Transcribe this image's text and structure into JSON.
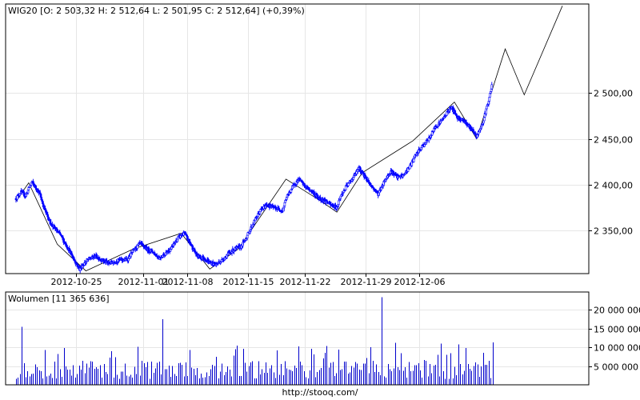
{
  "colors": {
    "candle": "#0000ff",
    "volume": "#0000cc",
    "projection": "#000000",
    "grid": "#e6e6e6"
  },
  "source_url": "http://stooq.com/",
  "chart_data": [
    {
      "type": "candlestick",
      "instrument": "WIG20",
      "header": "WIG20 [O: 2 503,32  H: 2 512,64  L: 2 501,95  C: 2 512,64] (+0,39%)",
      "ohlc": {
        "O": "2 503,32",
        "H": "2 512,64",
        "L": "2 501,95",
        "C": "2 512,64",
        "change": "+0,39%"
      },
      "x_tick_labels": [
        "2012-10-25",
        "2012-11-01",
        "2012-11-08",
        "2012-11-15",
        "2012-11-22",
        "2012-11-29",
        "2012-12-06"
      ],
      "y_tick_labels": [
        "2 350,00",
        "2 400,00",
        "2 450,00",
        "2 500,00"
      ],
      "y_ticks": [
        2350,
        2400,
        2450,
        2500
      ],
      "ylim": [
        2303,
        2597
      ],
      "grid": true,
      "price_path": [
        {
          "x": 0,
          "y": 2385
        },
        {
          "x": 1.5,
          "y": 2392
        },
        {
          "x": 3,
          "y": 2388
        },
        {
          "x": 5,
          "y": 2403
        },
        {
          "x": 7.5,
          "y": 2390
        },
        {
          "x": 9,
          "y": 2373
        },
        {
          "x": 11,
          "y": 2357
        },
        {
          "x": 14,
          "y": 2345
        },
        {
          "x": 16,
          "y": 2333
        },
        {
          "x": 18,
          "y": 2320
        },
        {
          "x": 20,
          "y": 2308
        },
        {
          "x": 22.5,
          "y": 2318
        },
        {
          "x": 25,
          "y": 2322
        },
        {
          "x": 27,
          "y": 2318
        },
        {
          "x": 29,
          "y": 2314
        },
        {
          "x": 31,
          "y": 2316
        },
        {
          "x": 33,
          "y": 2318
        },
        {
          "x": 35,
          "y": 2318
        },
        {
          "x": 37,
          "y": 2328
        },
        {
          "x": 39,
          "y": 2336
        },
        {
          "x": 41,
          "y": 2330
        },
        {
          "x": 43,
          "y": 2327
        },
        {
          "x": 45,
          "y": 2320
        },
        {
          "x": 47,
          "y": 2325
        },
        {
          "x": 49,
          "y": 2331
        },
        {
          "x": 51,
          "y": 2342
        },
        {
          "x": 53,
          "y": 2347
        },
        {
          "x": 55,
          "y": 2335
        },
        {
          "x": 57,
          "y": 2322
        },
        {
          "x": 59,
          "y": 2320
        },
        {
          "x": 61,
          "y": 2315
        },
        {
          "x": 63,
          "y": 2313
        },
        {
          "x": 65,
          "y": 2318
        },
        {
          "x": 67,
          "y": 2325
        },
        {
          "x": 69,
          "y": 2330
        },
        {
          "x": 71,
          "y": 2333
        },
        {
          "x": 73,
          "y": 2346
        },
        {
          "x": 75,
          "y": 2360
        },
        {
          "x": 77,
          "y": 2372
        },
        {
          "x": 79,
          "y": 2378
        },
        {
          "x": 81,
          "y": 2375
        },
        {
          "x": 83,
          "y": 2373
        },
        {
          "x": 84,
          "y": 2372
        },
        {
          "x": 85,
          "y": 2385
        },
        {
          "x": 87,
          "y": 2397
        },
        {
          "x": 89,
          "y": 2406
        },
        {
          "x": 91,
          "y": 2398
        },
        {
          "x": 93,
          "y": 2393
        },
        {
          "x": 95,
          "y": 2386
        },
        {
          "x": 97,
          "y": 2383
        },
        {
          "x": 99,
          "y": 2378
        },
        {
          "x": 101,
          "y": 2375
        },
        {
          "x": 102,
          "y": 2386
        },
        {
          "x": 104,
          "y": 2398
        },
        {
          "x": 106,
          "y": 2407
        },
        {
          "x": 108,
          "y": 2418
        },
        {
          "x": 110,
          "y": 2408
        },
        {
          "x": 112,
          "y": 2398
        },
        {
          "x": 114,
          "y": 2390
        },
        {
          "x": 116,
          "y": 2404
        },
        {
          "x": 118,
          "y": 2415
        },
        {
          "x": 120,
          "y": 2408
        },
        {
          "x": 122,
          "y": 2410
        },
        {
          "x": 124,
          "y": 2420
        },
        {
          "x": 126,
          "y": 2433
        },
        {
          "x": 128,
          "y": 2442
        },
        {
          "x": 130,
          "y": 2450
        },
        {
          "x": 132,
          "y": 2463
        },
        {
          "x": 134,
          "y": 2470
        },
        {
          "x": 136,
          "y": 2480
        },
        {
          "x": 137,
          "y": 2485
        },
        {
          "x": 139,
          "y": 2473
        },
        {
          "x": 141,
          "y": 2470
        },
        {
          "x": 143,
          "y": 2462
        },
        {
          "x": 145,
          "y": 2452
        },
        {
          "x": 147,
          "y": 2468
        },
        {
          "x": 149,
          "y": 2495
        },
        {
          "x": 150,
          "y": 2512
        }
      ],
      "projection_path": [
        {
          "x": 0,
          "y": 2382
        },
        {
          "x": 4,
          "y": 2402
        },
        {
          "x": 13,
          "y": 2335
        },
        {
          "x": 22,
          "y": 2306
        },
        {
          "x": 37,
          "y": 2330
        },
        {
          "x": 52,
          "y": 2347
        },
        {
          "x": 61,
          "y": 2308
        },
        {
          "x": 70,
          "y": 2330
        },
        {
          "x": 85,
          "y": 2406
        },
        {
          "x": 96,
          "y": 2382
        },
        {
          "x": 101,
          "y": 2370
        },
        {
          "x": 109,
          "y": 2413
        },
        {
          "x": 125,
          "y": 2448
        },
        {
          "x": 138,
          "y": 2490
        },
        {
          "x": 145,
          "y": 2450
        },
        {
          "x": 154,
          "y": 2548
        },
        {
          "x": 160,
          "y": 2498
        },
        {
          "x": 172,
          "y": 2595
        }
      ],
      "x_tick_positions": [
        19,
        40,
        54,
        73,
        91,
        110,
        127
      ],
      "x_max": 172,
      "last_candle_x": 150
    },
    {
      "type": "bar",
      "label": "Wolumen [11 365 636]",
      "y_tick_labels": [
        "5 000 000",
        "10 000 000",
        "15 000 000",
        "20 000 000"
      ],
      "y_ticks": [
        5000000,
        10000000,
        15000000,
        20000000
      ],
      "ylim": [
        0,
        24800000
      ],
      "grid": true,
      "spikes": [
        {
          "x": 2,
          "value": 15500000
        },
        {
          "x": 46,
          "value": 17500000
        },
        {
          "x": 82,
          "value": 9200000
        },
        {
          "x": 115,
          "value": 23400000
        },
        {
          "x": 139,
          "value": 10800000
        },
        {
          "x": 150,
          "value": 11365636
        }
      ]
    }
  ]
}
